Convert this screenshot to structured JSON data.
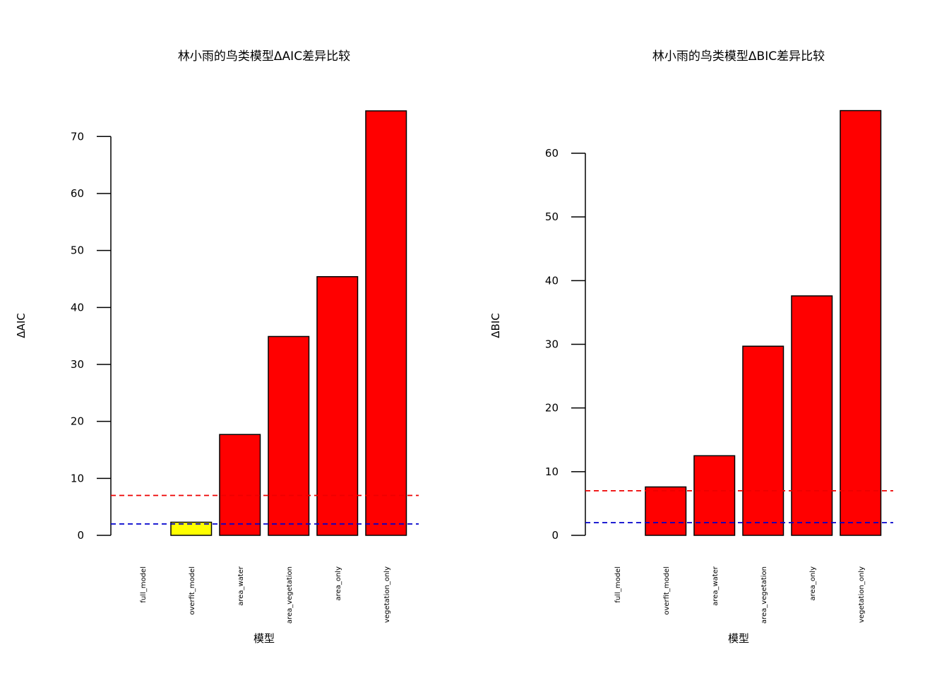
{
  "chart_data": [
    {
      "type": "bar",
      "title": "林小雨的鸟类模型ΔAIC差异比较",
      "xlabel": "模型",
      "ylabel": "ΔAIC",
      "categories": [
        "full_model",
        "overfit_model",
        "area_water",
        "area_vegetation",
        "area_only",
        "vegetation_only"
      ],
      "values": [
        0,
        2.3,
        17.7,
        34.9,
        45.4,
        74.5
      ],
      "bar_colors": [
        "#FF0000",
        "#FFFF00",
        "#FF0000",
        "#FF0000",
        "#FF0000",
        "#FF0000"
      ],
      "yticks": [
        0,
        10,
        20,
        30,
        40,
        50,
        60,
        70
      ],
      "ylim": [
        0,
        75
      ],
      "reference_lines": [
        {
          "value": 2,
          "color": "#0000CC",
          "style": "dashed"
        },
        {
          "value": 7,
          "color": "#EE0000",
          "style": "dashed"
        }
      ]
    },
    {
      "type": "bar",
      "title": "林小雨的鸟类模型ΔBIC差异比较",
      "xlabel": "模型",
      "ylabel": "ΔBIC",
      "categories": [
        "full_model",
        "overfit_model",
        "area_water",
        "area_vegetation",
        "area_only",
        "vegetation_only"
      ],
      "values": [
        0,
        7.6,
        12.5,
        29.7,
        37.6,
        66.7
      ],
      "bar_colors": [
        "#FF0000",
        "#FF0000",
        "#FF0000",
        "#FF0000",
        "#FF0000",
        "#FF0000"
      ],
      "yticks": [
        0,
        10,
        20,
        30,
        40,
        50,
        60
      ],
      "ylim": [
        0,
        67
      ],
      "reference_lines": [
        {
          "value": 2,
          "color": "#0000CC",
          "style": "dashed"
        },
        {
          "value": 7,
          "color": "#EE0000",
          "style": "dashed"
        }
      ]
    }
  ]
}
